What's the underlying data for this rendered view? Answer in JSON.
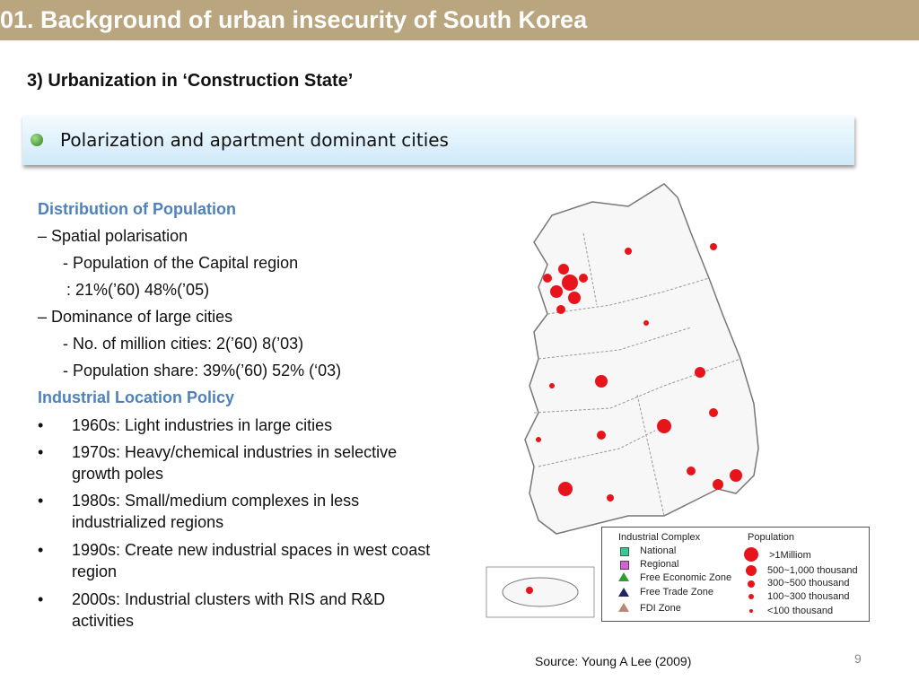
{
  "header": {
    "title": "01. Background of urban insecurity of South Korea"
  },
  "section": "3) Urbanization in ‘Construction State’",
  "banner": "Polarization and apartment dominant cities",
  "body": {
    "headings": [
      "Distribution of Population",
      "Industrial Location Policy"
    ],
    "population_lines": [
      "– Spatial polarisation",
      "- Population of the Capital region",
      ": 21%(’60)  48%(’05)",
      "– Dominance of large cities",
      "- No. of million cities: 2(’60)  8(’03)",
      "- Population share: 39%(’60)  52% (‘03)"
    ],
    "policy_bullets": [
      "1960s: Light industries in large cities",
      "1970s: Heavy/chemical industries in selective growth poles",
      "1980s: Small/medium complexes in less industrialized regions",
      "1990s: Create new industrial spaces in west coast region",
      "2000s: Industrial clusters with RIS and R&D activities"
    ]
  },
  "legend": {
    "industrial_title": "Industrial Complex",
    "industrial": [
      "National",
      "Regional",
      "Free Economic Zone",
      "Free Trade Zone",
      "FDI Zone"
    ],
    "population_title": "Population",
    "population": [
      ">1Milliom",
      "500~1,000 thousand",
      "300~500 thousand",
      "100~300 thousand",
      "<100 thousand"
    ]
  },
  "source": "Source: Young A Lee (2009)",
  "page_number": "9"
}
